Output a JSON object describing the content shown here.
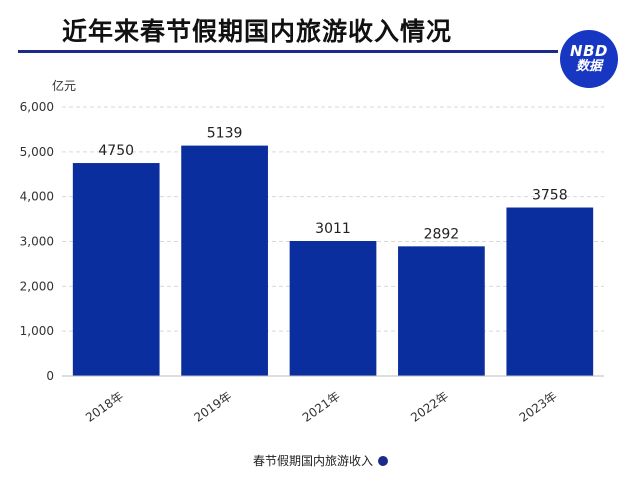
{
  "header": {
    "title": "近年来春节假期国内旅游收入情况",
    "logo_line1": "NBD",
    "logo_line2": "数据"
  },
  "colors": {
    "bar": "#0b2e9e",
    "title_rule": "#1c2a8a",
    "logo": "#1737c2"
  },
  "chart_data": {
    "type": "bar",
    "title": "近年来春节假期国内旅游收入情况",
    "ylabel": "亿元",
    "categories": [
      "2018年",
      "2019年",
      "2021年",
      "2022年",
      "2023年"
    ],
    "series": [
      {
        "name": "春节假期国内旅游收入",
        "values": [
          4750,
          5139,
          3011,
          2892,
          3758
        ]
      }
    ],
    "ylim": [
      0,
      6000
    ],
    "yticks": [
      0,
      1000,
      2000,
      3000,
      4000,
      5000,
      6000
    ],
    "ytick_labels": [
      "0",
      "1,000",
      "2,000",
      "3,000",
      "4,000",
      "5,000",
      "6,000"
    ],
    "grid": true,
    "legend_position": "bottom-center"
  }
}
